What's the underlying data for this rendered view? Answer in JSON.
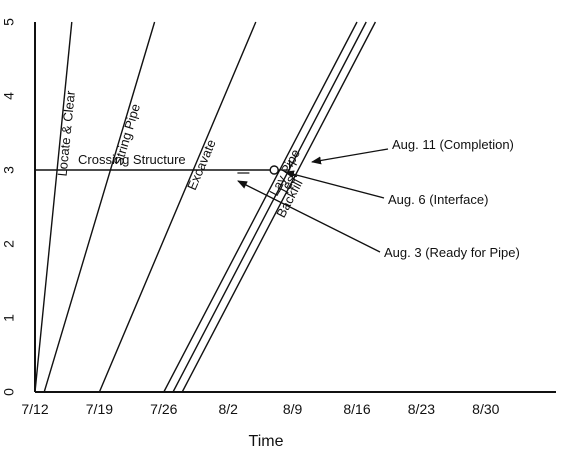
{
  "chart_data": {
    "type": "line",
    "xlabel": "Time",
    "ylabel": "",
    "ylim": [
      0,
      5
    ],
    "x_tick_labels": [
      "7/12",
      "7/19",
      "7/26",
      "8/2",
      "8/9",
      "8/16",
      "8/23",
      "8/30"
    ],
    "y_tick_labels": [
      "0",
      "1",
      "2",
      "3",
      "4",
      "5"
    ],
    "grid": false,
    "series": [
      {
        "name": "Locate & Clear",
        "x": [
          "7/12",
          "7/16"
        ],
        "y": [
          0,
          5
        ]
      },
      {
        "name": "String Pipe",
        "x": [
          "7/13",
          "7/25"
        ],
        "y": [
          0,
          5
        ]
      },
      {
        "name": "Excavate",
        "x": [
          "7/19",
          "8/5"
        ],
        "y": [
          0,
          5
        ]
      },
      {
        "name": "Lay Pipe",
        "x": [
          "7/26",
          "8/16"
        ],
        "y": [
          0,
          5
        ]
      },
      {
        "name": "Test",
        "x": [
          "7/27",
          "8/17"
        ],
        "y": [
          0,
          5
        ]
      },
      {
        "name": "Backfill",
        "x": [
          "7/28",
          "8/18"
        ],
        "y": [
          0,
          5
        ]
      }
    ],
    "crossing_structure": {
      "label": "Crossing Structure",
      "x": [
        "7/12",
        "8/7"
      ],
      "y": [
        3,
        3
      ]
    },
    "annotations": [
      {
        "text": "Aug. 11 (Completion)",
        "x": "8/9",
        "y": 3.1
      },
      {
        "text": "Aug. 6 (Interface)",
        "x": "8/7",
        "y": 3
      },
      {
        "text": "Aug. 3 (Ready for Pipe)",
        "x": "8/3",
        "y": 3
      }
    ]
  }
}
